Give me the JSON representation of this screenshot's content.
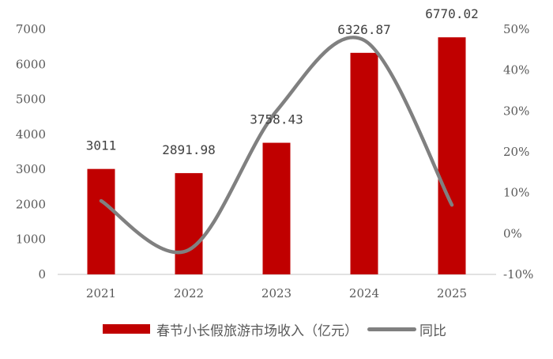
{
  "chart_data": {
    "type": "bar+line",
    "title": "",
    "categories": [
      "2021",
      "2022",
      "2023",
      "2024",
      "2025"
    ],
    "series": [
      {
        "name": "春节小长假旅游市场收入（亿元）",
        "type": "bar",
        "axis": "left",
        "color": "#C00000",
        "values": [
          3011,
          2891.98,
          3758.43,
          6326.87,
          6770.02
        ],
        "labels": [
          "3011",
          "2891.98",
          "3758.43",
          "6326.87",
          "6770.02"
        ]
      },
      {
        "name": "同比",
        "type": "line",
        "axis": "right",
        "color": "#808080",
        "smooth": true,
        "values": [
          8.0,
          -4.0,
          30.0,
          47.3,
          7.0
        ]
      }
    ],
    "y_left": {
      "min": 0,
      "max": 7000,
      "step": 1000,
      "ticks": [
        "0",
        "1000",
        "2000",
        "3000",
        "4000",
        "5000",
        "6000",
        "7000"
      ]
    },
    "y_right": {
      "min": -10,
      "max": 50,
      "step": 10,
      "ticks": [
        "-10%",
        "0%",
        "10%",
        "20%",
        "30%",
        "40%",
        "50%"
      ]
    },
    "xlabel": "",
    "ylabel": "",
    "grid": false,
    "legend_position": "bottom"
  },
  "legend": {
    "bar_label": "春节小长假旅游市场收入（亿元）",
    "line_label": "同比"
  }
}
